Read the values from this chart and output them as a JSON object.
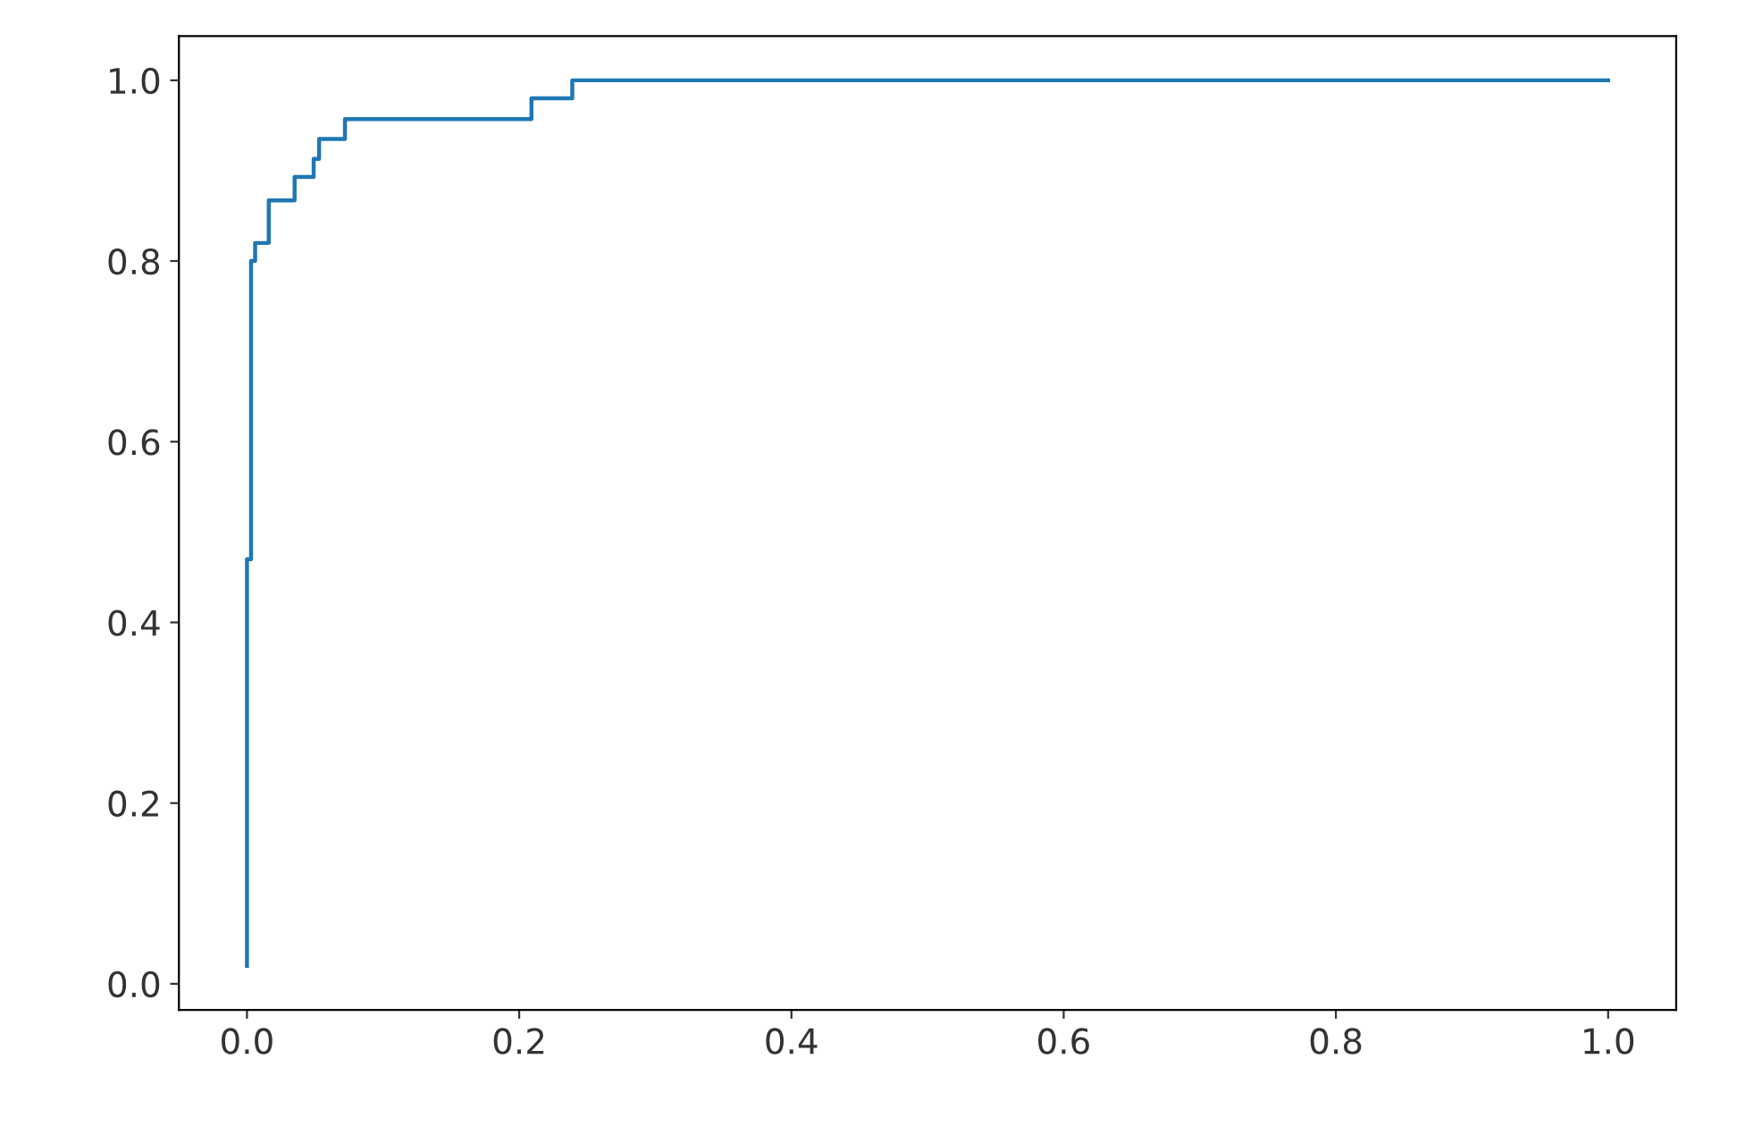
{
  "chart_data": {
    "type": "line",
    "x": [
      0.0,
      0.0,
      0.003,
      0.003,
      0.003,
      0.006,
      0.006,
      0.016,
      0.016,
      0.035,
      0.035,
      0.049,
      0.049,
      0.053,
      0.053,
      0.072,
      0.072,
      0.209,
      0.209,
      0.239,
      0.239,
      1.0
    ],
    "series": [
      {
        "color": "#1f77b4",
        "values": [
          0.02,
          0.47,
          0.47,
          0.69,
          0.8,
          0.8,
          0.82,
          0.82,
          0.867,
          0.867,
          0.893,
          0.893,
          0.913,
          0.913,
          0.935,
          0.935,
          0.957,
          0.957,
          0.98,
          0.98,
          1.0,
          1.0
        ]
      }
    ],
    "xlim": [
      -0.05,
      1.05
    ],
    "ylim": [
      -0.029,
      1.049
    ],
    "xticks": [
      {
        "value": 0,
        "label": "0.0"
      },
      0.2,
      0.4,
      0.6,
      0.8,
      {
        "value": 1,
        "label": "1.0"
      }
    ],
    "yticks": [
      {
        "value": 0,
        "label": "0.0"
      },
      0.2,
      0.4,
      0.6,
      0.8,
      {
        "value": 1,
        "label": "1.0"
      }
    ],
    "grid": false,
    "legend": false
  }
}
